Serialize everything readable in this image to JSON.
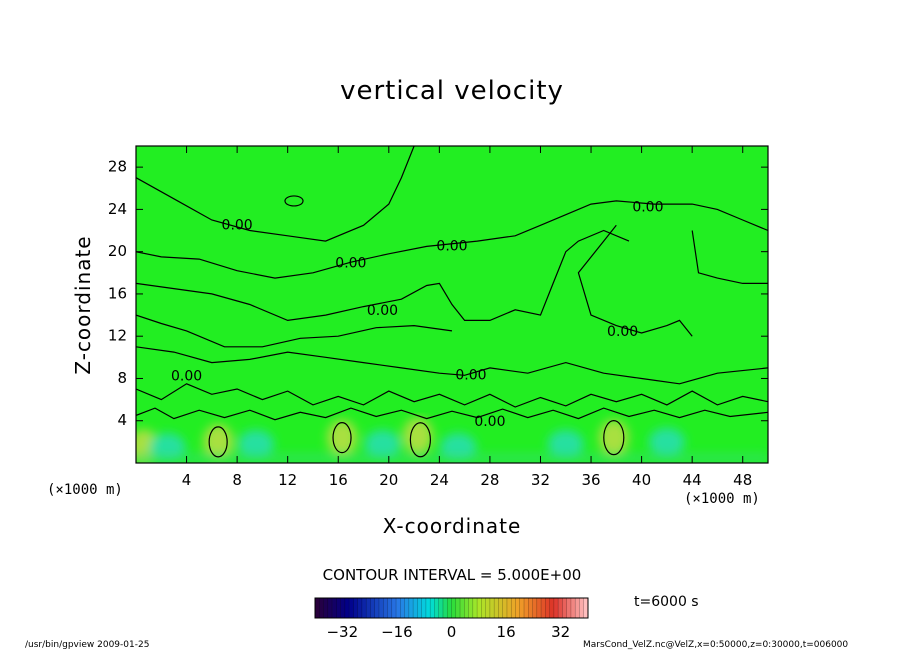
{
  "chart_data": {
    "type": "heatmap",
    "title": "vertical velocity",
    "xlabel": "X-coordinate",
    "ylabel": "Z-coordinate",
    "x_unit_label": "(×1000 m)",
    "y_unit_label": "(×1000 m)",
    "xlim": [
      0,
      50
    ],
    "ylim": [
      0,
      30
    ],
    "x_ticks": [
      4,
      8,
      12,
      16,
      20,
      24,
      28,
      32,
      36,
      40,
      44,
      48
    ],
    "y_ticks": [
      4,
      8,
      12,
      16,
      20,
      24,
      28
    ],
    "contour_labels": [
      {
        "text": "0.00",
        "x": 8,
        "z": 22.5
      },
      {
        "text": "0.00",
        "x": 17,
        "z": 18.9
      },
      {
        "text": "0.00",
        "x": 25,
        "z": 20.5
      },
      {
        "text": "0.00",
        "x": 19.5,
        "z": 14.4
      },
      {
        "text": "0.00",
        "x": 40.5,
        "z": 24.2
      },
      {
        "text": "0.00",
        "x": 38.5,
        "z": 12.4
      },
      {
        "text": "0.00",
        "x": 4,
        "z": 8.2
      },
      {
        "text": "0.00",
        "x": 26.5,
        "z": 8.3
      },
      {
        "text": "0.00",
        "x": 28,
        "z": 3.9
      }
    ],
    "contour_interval_text": "CONTOUR INTERVAL = 5.000E+00",
    "colorbar": {
      "min": -40,
      "max": 40,
      "ticks": [
        "-32",
        "-16",
        "0",
        "16",
        "32"
      ],
      "tick_values": [
        -32,
        -16,
        0,
        16,
        32
      ]
    },
    "time_label": "t=6000 s",
    "colors": {
      "background_field": "#22ee22",
      "updraft": "#a8e040",
      "downdraft": "#28e0a0"
    }
  },
  "footer": {
    "left": "/usr/bin/gpview   2009-01-25",
    "right": "MarsCond_VelZ.nc@VelZ,x=0:50000,z=0:30000,t=006000"
  }
}
